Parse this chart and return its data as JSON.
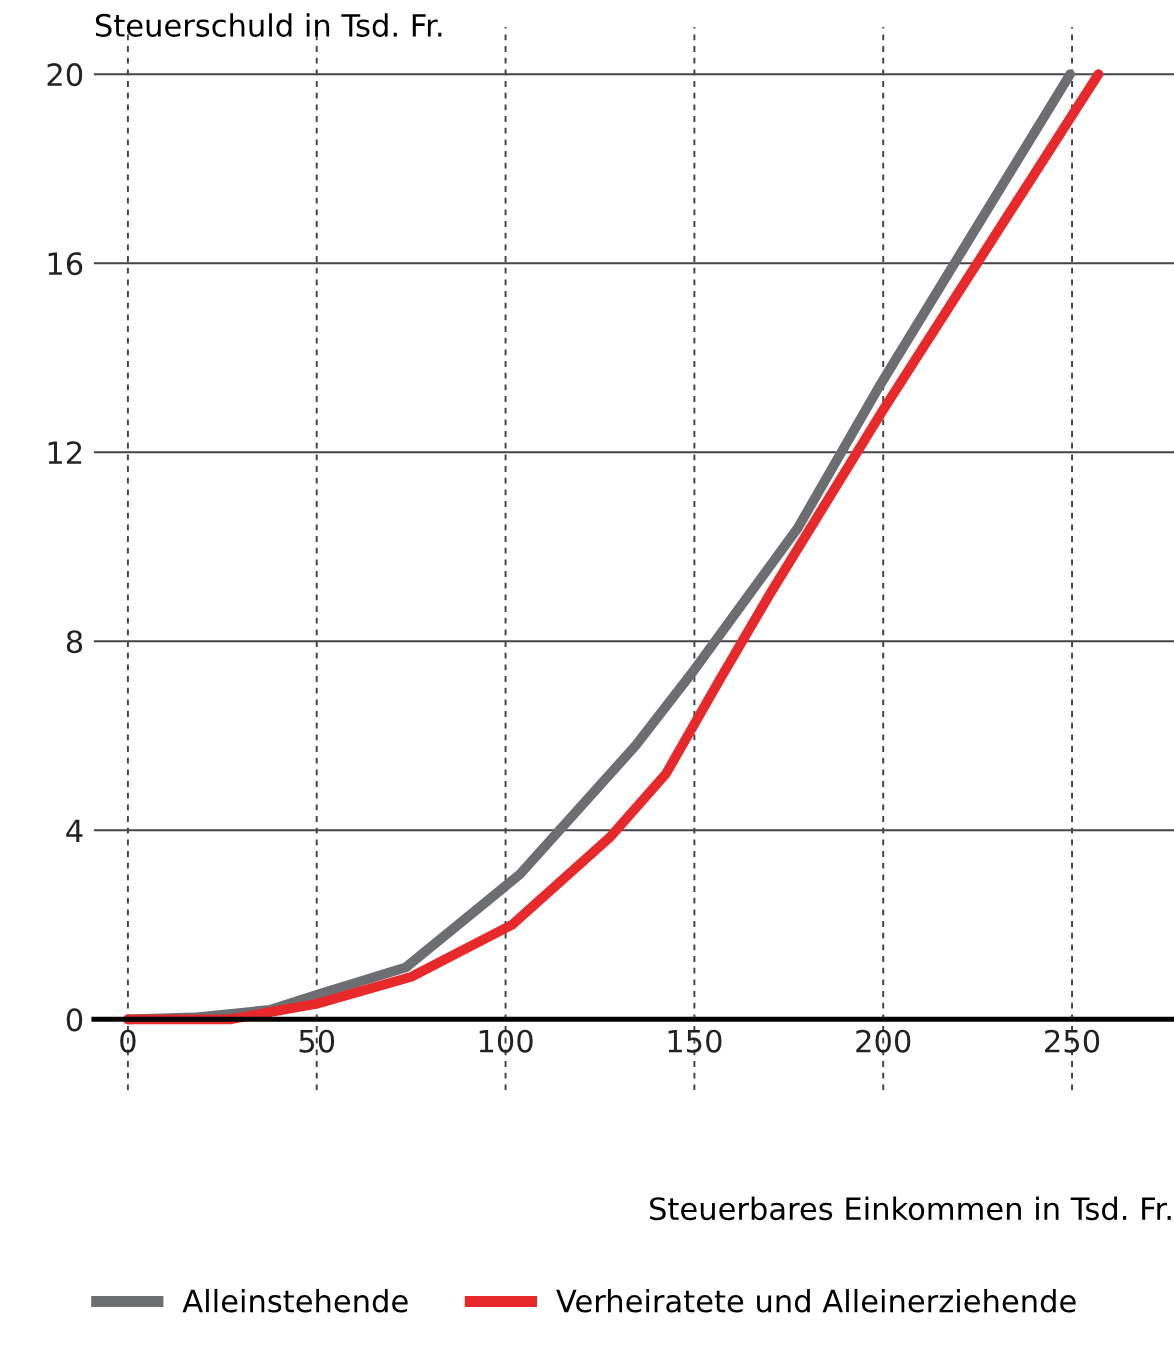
{
  "chart_data": {
    "type": "line",
    "ylabel": "Steuerschuld in Tsd. Fr.",
    "xlabel": "Steuerbares Einkommen in Tsd. Fr.",
    "xlim": [
      -9,
      277
    ],
    "ylim": [
      -1.5,
      21
    ],
    "xticks": [
      0,
      50,
      100,
      150,
      200,
      250
    ],
    "yticks": [
      0,
      4,
      8,
      12,
      16,
      20
    ],
    "grid": true,
    "legend": "bottom",
    "marker": "none",
    "line_style": "solid",
    "series": [
      {
        "name": "Alleinstehende",
        "color": "#6d6e71",
        "x": [
          0,
          17.5,
          37.6,
          50.8,
          73.6,
          103.8,
          134.5,
          150,
          177.4,
          199,
          249.5
        ],
        "values": [
          0,
          0.04,
          0.2,
          0.54,
          1.1,
          3.07,
          5.8,
          7.4,
          10.4,
          13.4,
          20
        ]
      },
      {
        "name": "Verheiratete und Alleinerziehende",
        "color": "#e8292b",
        "x": [
          0,
          27,
          50,
          75,
          101.7,
          127.6,
          142.5,
          156.8,
          170,
          200,
          257
        ],
        "values": [
          0,
          0,
          0.33,
          0.9,
          2.0,
          3.85,
          5.2,
          7.2,
          9.0,
          12.9,
          20
        ]
      }
    ]
  }
}
